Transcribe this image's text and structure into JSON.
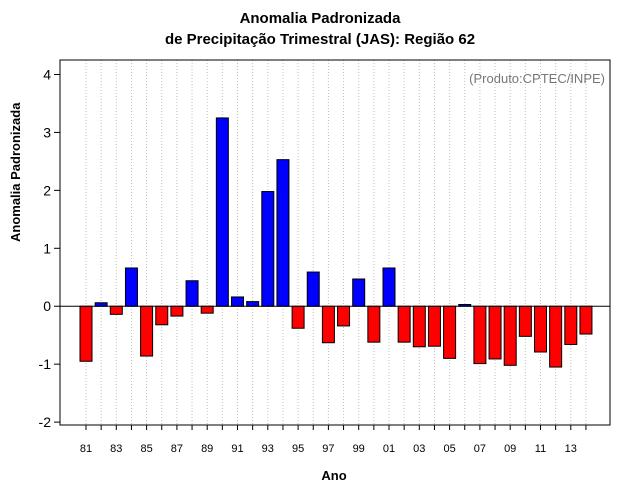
{
  "chart_data": {
    "type": "bar",
    "title_line1": "Anomalia Padronizada",
    "title_line2": "de Precipitação Trimestral (JAS): Região 62",
    "watermark": "(Produto:CPTEC/INPE)",
    "xlabel": "Ano",
    "ylabel": "Anomalia Padronizada",
    "ylim": [
      -2.05,
      4.25
    ],
    "yticks": [
      -2,
      -1,
      0,
      1,
      2,
      3,
      4
    ],
    "xtick_labels": [
      "81",
      "83",
      "85",
      "87",
      "89",
      "91",
      "93",
      "95",
      "97",
      "99",
      "01",
      "03",
      "05",
      "07",
      "09",
      "11",
      "13"
    ],
    "categories": [
      "1981",
      "1982",
      "1983",
      "1984",
      "1985",
      "1986",
      "1987",
      "1988",
      "1989",
      "1990",
      "1991",
      "1992",
      "1993",
      "1994",
      "1995",
      "1996",
      "1997",
      "1998",
      "1999",
      "2000",
      "2001",
      "2002",
      "2003",
      "2004",
      "2005",
      "2006",
      "2007",
      "2008",
      "2009",
      "2010",
      "2011",
      "2012",
      "2013",
      "2014"
    ],
    "values": [
      -0.95,
      0.06,
      -0.14,
      0.66,
      -0.86,
      -0.32,
      -0.17,
      0.44,
      -0.12,
      3.25,
      0.16,
      0.08,
      1.98,
      2.53,
      -0.38,
      0.59,
      -0.63,
      -0.34,
      0.47,
      -0.62,
      0.66,
      -0.62,
      -0.7,
      -0.69,
      -0.9,
      0.03,
      -0.99,
      -0.91,
      -1.02,
      -0.52,
      -0.79,
      -1.05,
      -0.66,
      -0.48
    ],
    "positive_color": "#0000ff",
    "negative_color": "#ff0000",
    "grid": "vertical dotted",
    "zero_line": true
  }
}
